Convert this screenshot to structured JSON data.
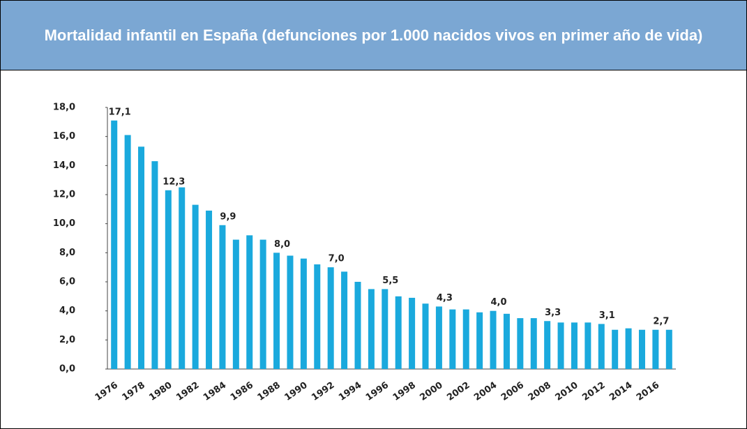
{
  "chart_data": {
    "type": "bar",
    "title": "Mortalidad infantil en España (defunciones por 1.000 nacidos vivos en primer año de vida)",
    "categories": [
      "1976",
      null,
      "1978",
      null,
      "1980",
      null,
      "1982",
      null,
      "1984",
      null,
      "1986",
      null,
      "1988",
      null,
      "1990",
      null,
      "1992",
      null,
      "1994",
      null,
      "1996",
      null,
      "1998",
      null,
      "2000",
      null,
      "2002",
      null,
      "2004",
      null,
      "2006",
      null,
      "2008",
      null,
      "2010",
      null,
      "2012",
      null,
      "2014",
      null,
      "2016",
      null
    ],
    "values": [
      17.1,
      16.1,
      15.3,
      14.3,
      12.3,
      12.5,
      11.3,
      10.9,
      9.9,
      8.9,
      9.2,
      8.9,
      8.0,
      7.8,
      7.6,
      7.2,
      7.0,
      6.7,
      6.0,
      5.5,
      5.5,
      5.0,
      4.9,
      4.5,
      4.3,
      4.1,
      4.1,
      3.9,
      4.0,
      3.8,
      3.5,
      3.5,
      3.3,
      3.2,
      3.2,
      3.2,
      3.1,
      2.7,
      2.8,
      2.7,
      2.7,
      2.7
    ],
    "value_labels": [
      "17,1",
      null,
      null,
      null,
      "12,3",
      null,
      null,
      null,
      "9,9",
      null,
      null,
      null,
      "8,0",
      null,
      null,
      null,
      "7,0",
      null,
      null,
      null,
      "5,5",
      null,
      null,
      null,
      "4,3",
      null,
      null,
      null,
      "4,0",
      null,
      null,
      null,
      "3,3",
      null,
      null,
      null,
      "3,1",
      null,
      null,
      null,
      "2,7",
      null
    ],
    "color": "#1aa9dd",
    "ylim": [
      0,
      18
    ],
    "yticks": [
      {
        "value": 0,
        "label": "0,0"
      },
      {
        "value": 2,
        "label": "2,0"
      },
      {
        "value": 4,
        "label": "4,0"
      },
      {
        "value": 6,
        "label": "6,0"
      },
      {
        "value": 8,
        "label": "8,0"
      },
      {
        "value": 10,
        "label": "10,0"
      },
      {
        "value": 12,
        "label": "12,0"
      },
      {
        "value": 14,
        "label": "14,0"
      },
      {
        "value": 16,
        "label": "16,0"
      },
      {
        "value": 18,
        "label": "18,0"
      }
    ]
  }
}
